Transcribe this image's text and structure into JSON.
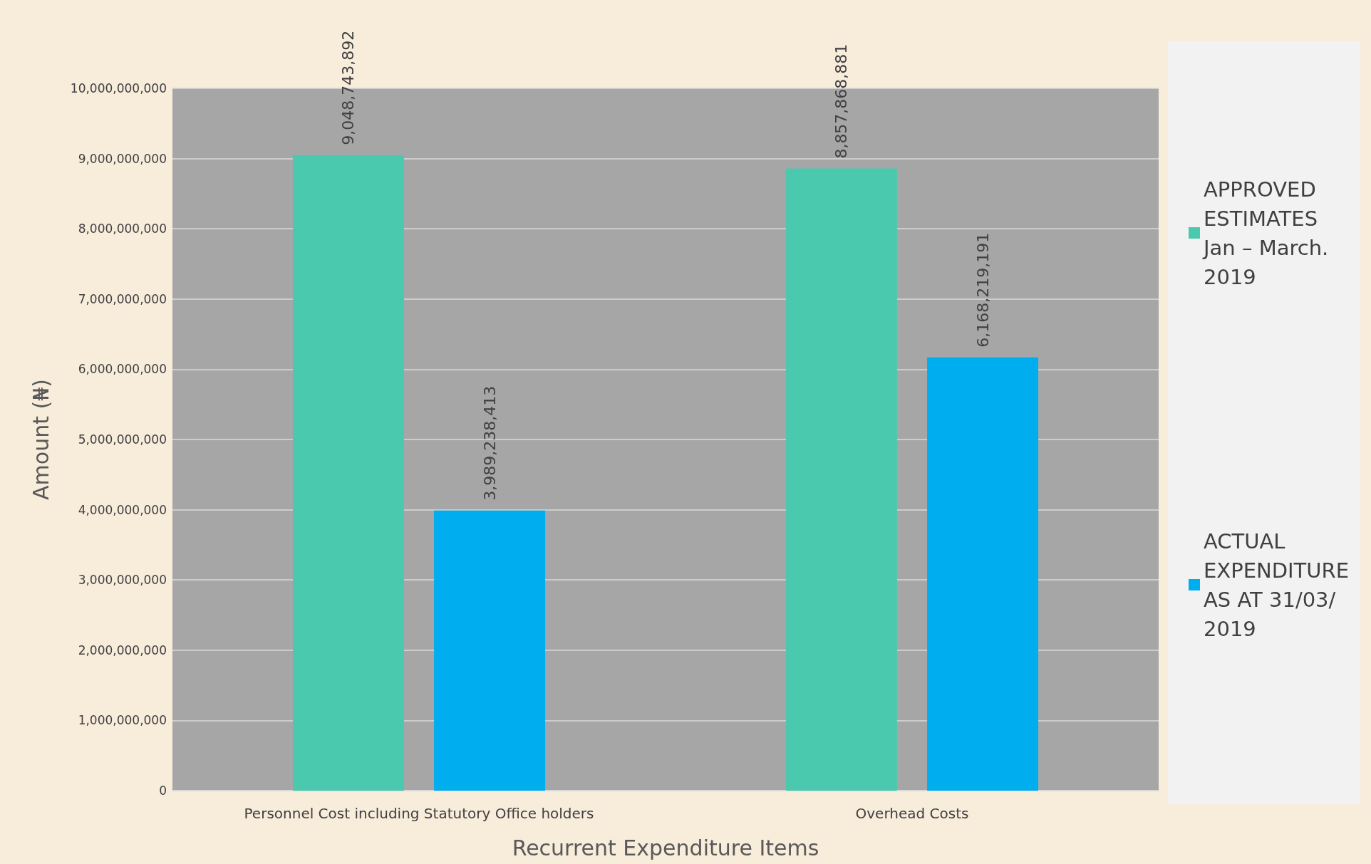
{
  "chart_data": {
    "type": "bar",
    "xlabel": "Recurrent Expenditure Items",
    "ylabel": "Amount (₦)",
    "categories": [
      "Personnel Cost including Statutory Office holders",
      "Overhead Costs"
    ],
    "series": [
      {
        "name": "APPROVED ESTIMATES  Jan – March. 2019",
        "color": "#4bc9ae",
        "values": [
          9048743892,
          8857868881
        ],
        "value_labels": [
          "9,048,743,892",
          "8,857,868,881"
        ]
      },
      {
        "name": "ACTUAL EXPENDITURE AS AT 31/03/2019",
        "color": "#00aeef",
        "values": [
          3989238413,
          6168219191
        ],
        "value_labels": [
          "3,989,238,413",
          "6,168,219,191"
        ]
      }
    ],
    "ylim": [
      0,
      10000000000
    ],
    "yticks": [
      {
        "value": 0,
        "label": "0"
      },
      {
        "value": 1000000000,
        "label": "1,000,000,000"
      },
      {
        "value": 2000000000,
        "label": "2,000,000,000"
      },
      {
        "value": 3000000000,
        "label": "3,000,000,000"
      },
      {
        "value": 4000000000,
        "label": "4,000,000,000"
      },
      {
        "value": 5000000000,
        "label": "5,000,000,000"
      },
      {
        "value": 6000000000,
        "label": "6,000,000,000"
      },
      {
        "value": 7000000000,
        "label": "7,000,000,000"
      },
      {
        "value": 8000000000,
        "label": "8,000,000,000"
      },
      {
        "value": 9000000000,
        "label": "9,000,000,000"
      },
      {
        "value": 10000000000,
        "label": "10,000,000,000"
      }
    ],
    "grid": "y",
    "legend": "right"
  }
}
